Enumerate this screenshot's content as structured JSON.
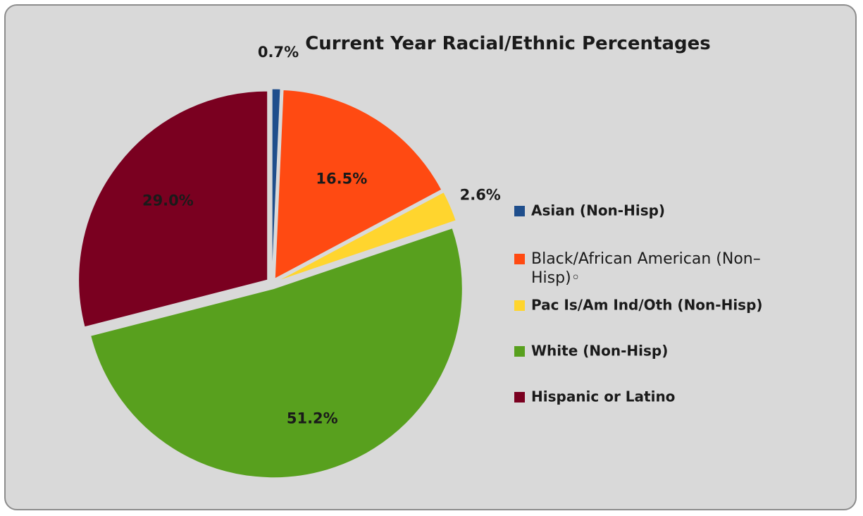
{
  "chart_data": {
    "type": "pie",
    "title": "Current Year Racial/Ethnic Percentages",
    "slices": [
      {
        "name": "Asian (Non-Hisp)",
        "value": 0.7,
        "label": "0.7%",
        "color": "#1f4e8c"
      },
      {
        "name": "Black/African American (Non-Hisp)◦",
        "value": 16.5,
        "label": "16.5%",
        "color": "#ff4a12"
      },
      {
        "name": "Pac Is/Am Ind/Oth (Non-Hisp)",
        "value": 2.6,
        "label": "2.6%",
        "color": "#ffd52e"
      },
      {
        "name": "White (Non-Hisp)",
        "value": 51.2,
        "label": "51.2%",
        "color": "#58a01e"
      },
      {
        "name": "Hispanic or Latino",
        "value": 29.0,
        "label": "29.0%",
        "color": "#7a0020"
      }
    ],
    "legend": {
      "position": "right",
      "items": [
        {
          "line1": "Asian (Non-Hisp)",
          "line2": "",
          "style": "bold"
        },
        {
          "line1": "Black/African American (Non–",
          "line2": "Hisp)◦",
          "style": "plain"
        },
        {
          "line1": "Pac Is/Am Ind/Oth (Non-Hisp)",
          "line2": "",
          "style": "bold"
        },
        {
          "line1": "White (Non-Hisp)",
          "line2": "",
          "style": "bold"
        },
        {
          "line1": "Hispanic or Latino",
          "line2": "",
          "style": "bold"
        }
      ]
    },
    "background": "#d9d9d9"
  }
}
